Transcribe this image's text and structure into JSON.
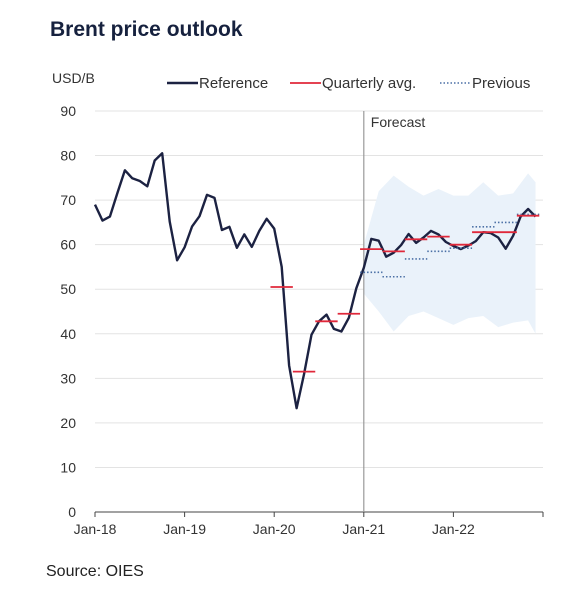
{
  "title": "Brent price outlook",
  "source": "Source: OIES",
  "chart_data": {
    "type": "line",
    "title": "Brent price outlook",
    "ylabel": "USD/B",
    "ylim": [
      0,
      90
    ],
    "yticks": [
      0,
      10,
      20,
      30,
      40,
      50,
      60,
      70,
      80,
      90
    ],
    "xlim": [
      "2018-01",
      "2022-12"
    ],
    "xticks": [
      "Jan-18",
      "Jan-19",
      "Jan-20",
      "Jan-21",
      "Jan-22"
    ],
    "grid": true,
    "legend_position": "top",
    "forecast_label": "Forecast",
    "forecast_start": "2021-01",
    "colors": {
      "reference": "#1c2242",
      "quarterly": "#e0283a",
      "previous": "#4a6fa5",
      "band": "#eaf2fa",
      "grid": "#e3e3e3"
    },
    "series": [
      {
        "name": "Reference",
        "style": "line",
        "x": [
          "2018-01",
          "2018-02",
          "2018-03",
          "2018-04",
          "2018-05",
          "2018-06",
          "2018-07",
          "2018-08",
          "2018-09",
          "2018-10",
          "2018-11",
          "2018-12",
          "2019-01",
          "2019-02",
          "2019-03",
          "2019-04",
          "2019-05",
          "2019-06",
          "2019-07",
          "2019-08",
          "2019-09",
          "2019-10",
          "2019-11",
          "2019-12",
          "2020-01",
          "2020-02",
          "2020-03",
          "2020-04",
          "2020-05",
          "2020-06",
          "2020-07",
          "2020-08",
          "2020-09",
          "2020-10",
          "2020-11",
          "2020-12",
          "2021-01",
          "2021-02",
          "2021-03",
          "2021-04",
          "2021-05",
          "2021-06",
          "2021-07",
          "2021-08",
          "2021-09",
          "2021-10",
          "2021-11",
          "2021-12",
          "2022-01",
          "2022-02",
          "2022-03",
          "2022-04",
          "2022-05",
          "2022-06",
          "2022-07",
          "2022-08",
          "2022-09",
          "2022-10",
          "2022-11",
          "2022-12"
        ],
        "values": [
          69.0,
          65.4,
          66.3,
          71.6,
          76.7,
          74.9,
          74.3,
          73.1,
          78.9,
          80.5,
          65.2,
          56.5,
          59.4,
          64.1,
          66.4,
          71.2,
          70.5,
          63.3,
          64.0,
          59.3,
          62.3,
          59.5,
          63.1,
          65.8,
          63.6,
          55.0,
          32.9,
          23.3,
          31.0,
          39.8,
          42.8,
          44.3,
          41.1,
          40.5,
          43.6,
          50.2,
          54.8,
          61.3,
          60.9,
          57.3,
          58.2,
          59.9,
          62.4,
          60.4,
          61.6,
          63.1,
          62.3,
          60.6,
          59.7,
          59.0,
          59.8,
          60.8,
          62.8,
          62.6,
          61.6,
          59.1,
          62.0,
          66.3,
          68.0,
          66.3
        ]
      },
      {
        "name": "Quarterly avg.",
        "style": "tick",
        "x": [
          "2020-02",
          "2020-05",
          "2020-08",
          "2020-11",
          "2021-02",
          "2021-05",
          "2021-08",
          "2021-11",
          "2022-02",
          "2022-05",
          "2022-08",
          "2022-11"
        ],
        "values": [
          50.5,
          31.5,
          42.8,
          44.5,
          59.0,
          58.5,
          61.2,
          61.8,
          60.0,
          62.8,
          62.8,
          66.5
        ]
      },
      {
        "name": "Previous",
        "style": "dotted-tick",
        "x": [
          "2021-02",
          "2021-05",
          "2021-08",
          "2021-11",
          "2022-02",
          "2022-05",
          "2022-08",
          "2022-11"
        ],
        "values": [
          53.8,
          52.8,
          56.8,
          58.5,
          59.2,
          64.0,
          65.0,
          66.8
        ]
      }
    ],
    "uncertainty_band": {
      "x": [
        "2021-01",
        "2021-03",
        "2021-05",
        "2021-07",
        "2021-09",
        "2021-11",
        "2022-01",
        "2022-03",
        "2022-05",
        "2022-07",
        "2022-09",
        "2022-11",
        "2022-12"
      ],
      "upper": [
        60.0,
        72.0,
        75.5,
        73.0,
        71.0,
        72.5,
        71.0,
        71.0,
        74.0,
        71.0,
        71.5,
        76.0,
        74.0
      ],
      "lower": [
        49.0,
        45.0,
        40.5,
        44.0,
        45.0,
        43.5,
        42.0,
        43.5,
        44.0,
        41.5,
        42.5,
        43.0,
        40.0
      ]
    }
  }
}
